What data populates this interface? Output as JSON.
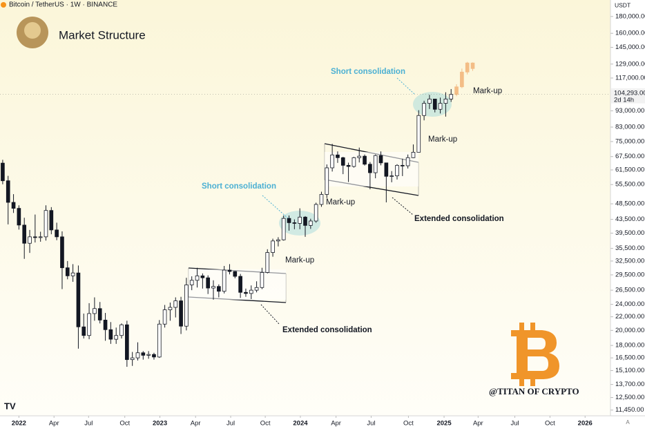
{
  "chart_data": {
    "type": "candlestick",
    "header": "Bitcoin / TetherUS · 1W · BINANCE",
    "title": "Market Structure",
    "currency": "USDT",
    "log_scale": true,
    "ylim": [
      11000,
      202000
    ],
    "xlim": [
      0,
      113
    ],
    "yticks": [
      {
        "value": 180000,
        "label": "180,000.00"
      },
      {
        "value": 160000,
        "label": "160,000.00"
      },
      {
        "value": 145000,
        "label": "145,000.00"
      },
      {
        "value": 129000,
        "label": "129,000.00"
      },
      {
        "value": 117000,
        "label": "117,000.00"
      },
      {
        "value": 93000,
        "label": "93,000.00"
      },
      {
        "value": 83000,
        "label": "83,000.00"
      },
      {
        "value": 75000,
        "label": "75,000.00"
      },
      {
        "value": 67500,
        "label": "67,500.00"
      },
      {
        "value": 61500,
        "label": "61,500.00"
      },
      {
        "value": 55500,
        "label": "55,500.00"
      },
      {
        "value": 48500,
        "label": "48,500.00"
      },
      {
        "value": 43500,
        "label": "43,500.00"
      },
      {
        "value": 39500,
        "label": "39,500.00"
      },
      {
        "value": 35500,
        "label": "35,500.00"
      },
      {
        "value": 32500,
        "label": "32,500.00"
      },
      {
        "value": 29500,
        "label": "29,500.00"
      },
      {
        "value": 26500,
        "label": "26,500.00"
      },
      {
        "value": 24000,
        "label": "24,000.00"
      },
      {
        "value": 22000,
        "label": "22,000.00"
      },
      {
        "value": 20000,
        "label": "20,000.00"
      },
      {
        "value": 18000,
        "label": "18,000.00"
      },
      {
        "value": 16500,
        "label": "16,500.00"
      },
      {
        "value": 15100,
        "label": "15,100.00"
      },
      {
        "value": 13700,
        "label": "13,700.00"
      },
      {
        "value": 12500,
        "label": "12,500.00"
      },
      {
        "value": 11450,
        "label": "11,450.00"
      }
    ],
    "xticks": [
      {
        "value": 3.5,
        "label": "2022"
      },
      {
        "value": 10,
        "label": "Apr"
      },
      {
        "value": 16.4,
        "label": "Jul"
      },
      {
        "value": 23.1,
        "label": "Oct"
      },
      {
        "value": 29.6,
        "label": "2023"
      },
      {
        "value": 36.2,
        "label": "Apr"
      },
      {
        "value": 42.7,
        "label": "Jul"
      },
      {
        "value": 49.1,
        "label": "Oct"
      },
      {
        "value": 55.6,
        "label": "2024"
      },
      {
        "value": 62.2,
        "label": "Apr"
      },
      {
        "value": 68.7,
        "label": "Jul"
      },
      {
        "value": 75.6,
        "label": "Oct"
      },
      {
        "value": 82.2,
        "label": "2025"
      },
      {
        "value": 88.5,
        "label": "Apr"
      },
      {
        "value": 95.3,
        "label": "Jul"
      },
      {
        "value": 101.8,
        "label": "Oct"
      },
      {
        "value": 108.3,
        "label": "2026"
      }
    ],
    "candles": {
      "up_color": "#ffffff",
      "down_color": "#131722",
      "edge_color": "#131722",
      "open": [
        64500,
        57000,
        49000,
        47000,
        41800,
        36800,
        38500,
        38300,
        38500,
        46300,
        40400,
        38500,
        31000,
        29300,
        29900,
        20500,
        19300,
        22500,
        23300,
        21500,
        20100,
        18800,
        19300,
        20800,
        16300,
        16500,
        17100,
        16800,
        16900,
        16600,
        20900,
        23100,
        23500,
        24600,
        20600,
        27500,
        28400,
        29300,
        28900,
        26900,
        27200,
        26300,
        30500,
        30200,
        29200,
        26100,
        25900,
        26500,
        27000,
        30000,
        34500,
        37400,
        37700,
        43800,
        42500,
        42300,
        44200,
        41700,
        43000,
        48300,
        51800,
        62400,
        68300,
        67000,
        63500,
        63000,
        67000,
        67700,
        64000,
        60300,
        68000,
        64600,
        58800,
        59000,
        63500,
        63300,
        67000,
        69600,
        90000,
        98000,
        101000,
        94000,
        98000,
        101000
      ],
      "high": [
        66000,
        59000,
        51900,
        48000,
        44000,
        40400,
        45000,
        39900,
        48000,
        47400,
        42500,
        40000,
        32500,
        31800,
        31500,
        22500,
        24200,
        25200,
        24400,
        22600,
        21200,
        20400,
        21000,
        21400,
        17200,
        18400,
        17300,
        17300,
        17100,
        21500,
        23900,
        24300,
        25200,
        25300,
        28900,
        29200,
        31000,
        29800,
        29400,
        28400,
        27600,
        31400,
        31800,
        30300,
        29700,
        26800,
        27400,
        28200,
        31000,
        35300,
        38000,
        38400,
        44700,
        44700,
        43500,
        47000,
        44500,
        43700,
        48900,
        52800,
        63900,
        73800,
        70000,
        67400,
        64700,
        67400,
        71900,
        68500,
        65000,
        68500,
        70000,
        64700,
        61000,
        64000,
        66500,
        68500,
        73500,
        93400,
        99800,
        104000,
        100000,
        102000,
        105900,
        108300
      ],
      "low": [
        55600,
        42000,
        45500,
        40500,
        33000,
        34400,
        37000,
        37200,
        37500,
        39200,
        37600,
        26700,
        28600,
        28100,
        17600,
        18900,
        18800,
        21400,
        21000,
        18600,
        18200,
        18200,
        18900,
        15500,
        15600,
        16200,
        16300,
        16400,
        16300,
        16500,
        20400,
        21400,
        21900,
        19500,
        20000,
        26500,
        27000,
        26800,
        25800,
        24800,
        25200,
        25900,
        29600,
        28800,
        25100,
        25300,
        24900,
        26100,
        26700,
        29800,
        33500,
        36000,
        37500,
        40200,
        40600,
        40600,
        38500,
        40700,
        42500,
        47500,
        50500,
        60800,
        64600,
        59700,
        56500,
        62500,
        64800,
        63400,
        53700,
        58000,
        63500,
        49000,
        56400,
        57500,
        58900,
        62100,
        66800,
        69600,
        87000,
        94200,
        92000,
        91300,
        89300,
        99000
      ],
      "close": [
        57000,
        49000,
        47000,
        41800,
        36800,
        38500,
        38300,
        38500,
        46300,
        40400,
        38500,
        31000,
        29300,
        29900,
        20500,
        19300,
        22500,
        23300,
        21500,
        20100,
        18800,
        19300,
        20800,
        16300,
        16500,
        17100,
        16800,
        16900,
        16600,
        20900,
        23100,
        23500,
        24600,
        20600,
        27500,
        28400,
        29300,
        28900,
        26900,
        27200,
        26300,
        30500,
        30200,
        29200,
        26100,
        25900,
        26500,
        27000,
        30000,
        34500,
        37400,
        37700,
        43800,
        42500,
        42300,
        44200,
        41700,
        43000,
        48300,
        51800,
        62400,
        68300,
        67000,
        63500,
        63000,
        67000,
        67700,
        64000,
        60300,
        68000,
        64600,
        58800,
        59000,
        63500,
        63300,
        67000,
        69600,
        90000,
        98000,
        101000,
        94000,
        98000,
        101000,
        104293
      ]
    },
    "projection": {
      "color": "#f3bd86",
      "open": [
        104293,
        110000,
        122000,
        130000
      ],
      "high": [
        112000,
        125000,
        131000,
        130500
      ],
      "low": [
        103000,
        109000,
        120000,
        123000
      ],
      "close": [
        110000,
        122000,
        130000,
        125000
      ]
    },
    "last_price": {
      "value": 104293,
      "label": "104,293.00"
    },
    "countdown": "2d 14h",
    "scale_mode": "A",
    "annotations": [
      "Short consolidation",
      "Short consolidation",
      "Mark-up",
      "Mark-up",
      "Mark-up",
      "Mark-up",
      "Extended consolidation",
      "Extended consolidation"
    ],
    "watermark": "@TITAN OF CRYPTO"
  }
}
